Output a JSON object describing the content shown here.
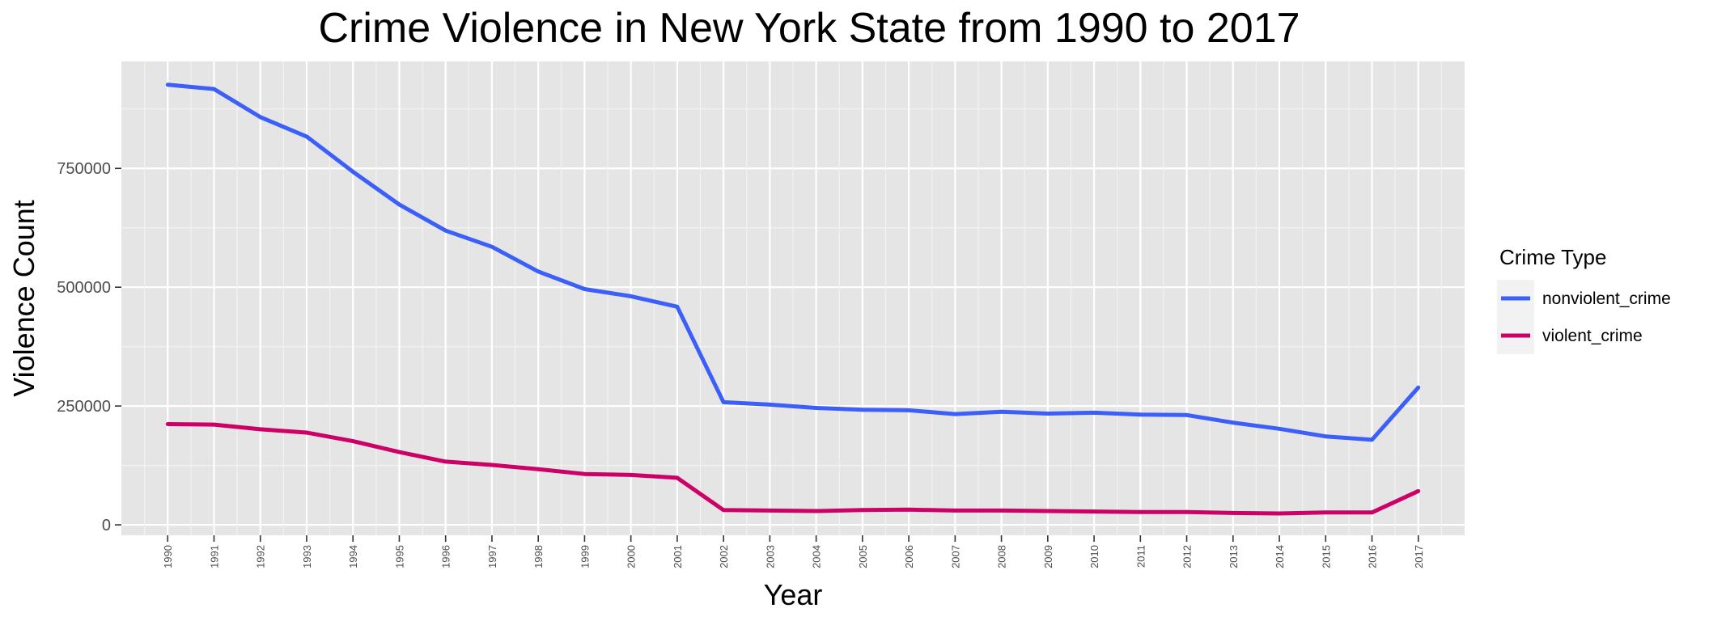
{
  "chart_data": {
    "type": "line",
    "title": "Crime Violence in New York State from 1990 to 2017",
    "xlabel": "Year",
    "ylabel": "Violence Count",
    "x": [
      1990,
      1991,
      1992,
      1993,
      1994,
      1995,
      1996,
      1997,
      1998,
      1999,
      2000,
      2001,
      2002,
      2003,
      2004,
      2005,
      2006,
      2007,
      2008,
      2009,
      2010,
      2011,
      2012,
      2013,
      2014,
      2015,
      2016,
      2017
    ],
    "xlim": [
      1989,
      2018
    ],
    "ylim": [
      -22000,
      975000
    ],
    "yticks": [
      0,
      250000,
      500000,
      750000
    ],
    "ytick_labels": [
      "0",
      "250000",
      "500000",
      "750000"
    ],
    "grid": true,
    "legend": {
      "title": "Crime Type",
      "position": "right"
    },
    "series": [
      {
        "name": "nonviolent_crime",
        "color": "#3b5ff8",
        "values": [
          926000,
          917000,
          858000,
          817000,
          743000,
          674000,
          619000,
          585000,
          533000,
          496000,
          481000,
          459000,
          258000,
          253000,
          246000,
          242000,
          241000,
          233000,
          238000,
          234000,
          236000,
          232000,
          231000,
          215000,
          202000,
          186000,
          179000,
          289000
        ]
      },
      {
        "name": "violent_crime",
        "color": "#cc0066",
        "values": [
          212000,
          211000,
          201000,
          194000,
          176000,
          153000,
          133000,
          126000,
          117000,
          107000,
          105000,
          99000,
          31000,
          30000,
          29000,
          31000,
          32000,
          30000,
          30000,
          29000,
          28000,
          27000,
          27000,
          25000,
          24000,
          26000,
          26000,
          71000
        ]
      }
    ]
  }
}
